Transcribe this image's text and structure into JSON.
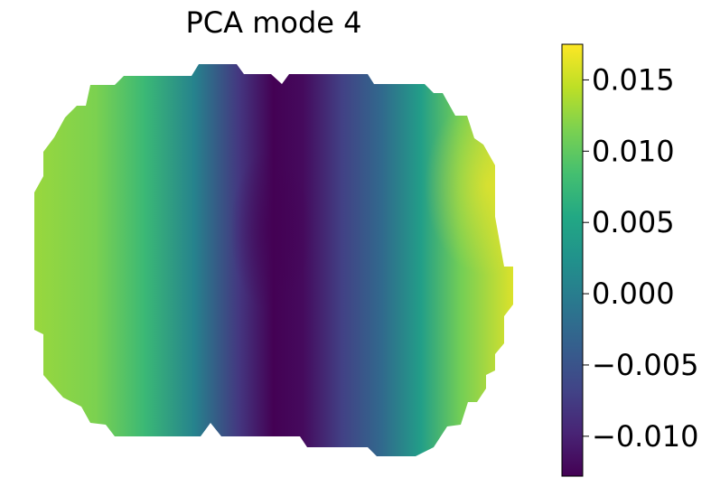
{
  "chart_data": {
    "type": "heatmap",
    "title": "PCA mode 4",
    "xlabel": "",
    "ylabel": "",
    "axes_visible": false,
    "grid": false,
    "colormap": "viridis",
    "colorbar": {
      "placement": "right",
      "vmin": -0.0128,
      "vmax": 0.0175,
      "ticks": [
        0.015,
        0.01,
        0.005,
        0.0,
        -0.005,
        -0.01
      ],
      "tick_labels": [
        "0.015",
        "0.010",
        "0.005",
        "0.000",
        "−0.005",
        "−0.010"
      ]
    },
    "field": {
      "description_of_values": "mode-4 value varies mainly along horizontal direction",
      "left_edge_value": 0.013,
      "center_min_value": -0.0128,
      "right_edge_value": 0.0165
    }
  }
}
